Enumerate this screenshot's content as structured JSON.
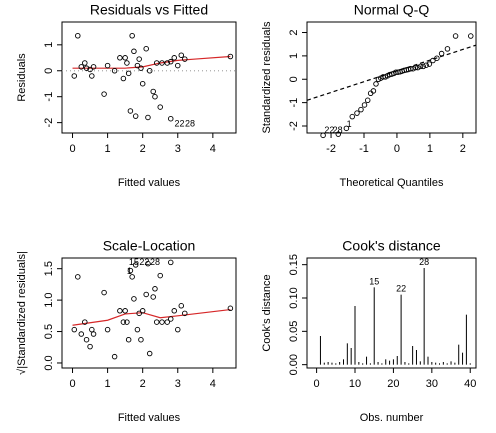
{
  "chart_data": [
    {
      "type": "scatter",
      "title": "Residuals vs Fitted",
      "xlabel": "Fitted values",
      "ylabel": "Residuals",
      "xlim": [
        -0.3,
        4.66
      ],
      "ylim": [
        -2.4,
        1.88
      ],
      "xticks": [
        0,
        1,
        2,
        3,
        4
      ],
      "yticks": [
        -2,
        -1,
        0,
        1
      ],
      "marker_color": "#000000",
      "x": [
        0.05,
        0.15,
        0.25,
        0.35,
        0.4,
        0.5,
        0.55,
        0.6,
        0.9,
        1.2,
        1.35,
        1.45,
        1.5,
        1.55,
        1.6,
        1.65,
        1.7,
        1.75,
        1.8,
        1.85,
        1.9,
        1.95,
        2.0,
        2.1,
        2.15,
        2.2,
        2.3,
        2.35,
        2.4,
        2.5,
        2.55,
        2.8,
        2.7,
        2.8,
        2.9,
        3.0,
        3.1,
        3.2,
        4.5,
        1.0
      ],
      "y": [
        -0.2,
        1.35,
        0.15,
        0.3,
        0.1,
        0.05,
        -0.2,
        0.15,
        -0.9,
        0.0,
        0.5,
        -0.3,
        0.5,
        0.3,
        -0.1,
        -1.55,
        1.35,
        0.75,
        -1.75,
        0.2,
        0.45,
        0.1,
        -0.5,
        0.85,
        -1.8,
        0.0,
        -0.8,
        -1.0,
        0.3,
        -1.4,
        0.3,
        -1.85,
        0.3,
        0.35,
        0.5,
        0.2,
        0.6,
        0.45,
        0.55,
        0.2
      ],
      "lines": [
        {
          "color": "#aaaaaa",
          "style": "dotted",
          "x": [
            -0.3,
            4.66
          ],
          "y": [
            0,
            0
          ]
        },
        {
          "color": "#d62728",
          "style": "solid",
          "x": [
            0,
            0.5,
            1,
            1.5,
            2,
            2.5,
            3,
            3.5,
            4.5
          ],
          "y": [
            0.1,
            0.1,
            0.1,
            0.1,
            0.15,
            0.3,
            0.4,
            0.45,
            0.55
          ]
        }
      ],
      "annotations": [
        {
          "text": "22",
          "x": 3.05,
          "y": -2.05
        },
        {
          "text": "28",
          "x": 3.35,
          "y": -2.05
        }
      ]
    },
    {
      "type": "scatter",
      "title": "Normal Q-Q",
      "xlabel": "Theoretical Quantiles",
      "ylabel": "Standardized residuals",
      "xlim": [
        -2.73,
        2.4
      ],
      "ylim": [
        -2.3,
        2.45
      ],
      "xticks": [
        -2,
        -1,
        0,
        1,
        2
      ],
      "yticks": [
        -2,
        -1,
        0,
        1,
        2
      ],
      "marker_color": "#000000",
      "x": [
        -2.241,
        -1.78,
        -1.534,
        -1.356,
        -1.213,
        -1.092,
        -0.984,
        -0.887,
        -0.798,
        -0.714,
        -0.636,
        -0.561,
        -0.489,
        -0.419,
        -0.352,
        -0.286,
        -0.221,
        -0.157,
        -0.094,
        -0.031,
        0.031,
        0.094,
        0.157,
        0.221,
        0.286,
        0.352,
        0.419,
        0.489,
        0.561,
        0.636,
        0.714,
        0.798,
        0.887,
        0.984,
        1.092,
        1.213,
        1.356,
        1.534,
        1.78,
        2.241
      ],
      "y": [
        -2.4,
        -2.35,
        -2.1,
        -1.6,
        -1.45,
        -1.3,
        -1.1,
        -0.9,
        -0.6,
        -0.5,
        -0.2,
        0.0,
        0.05,
        0.1,
        0.1,
        0.15,
        0.2,
        0.22,
        0.25,
        0.3,
        0.3,
        0.32,
        0.35,
        0.38,
        0.4,
        0.42,
        0.45,
        0.45,
        0.5,
        0.5,
        0.55,
        0.55,
        0.6,
        0.65,
        0.8,
        0.9,
        1.1,
        1.3,
        1.85,
        1.85
      ],
      "lines": [
        {
          "color": "#000000",
          "style": "dashed",
          "x": [
            -2.73,
            2.4
          ],
          "y": [
            -0.9,
            1.46
          ]
        }
      ],
      "annotations": [
        {
          "text": "22",
          "x": -2.05,
          "y": -2.2
        },
        {
          "text": "28",
          "x": -1.8,
          "y": -2.2
        },
        {
          "text": "1",
          "x": -1.45,
          "y": -1.95
        }
      ]
    },
    {
      "type": "scatter",
      "title": "Scale-Location",
      "xlabel": "Fitted values",
      "ylabel": "√|Standardized residuals|",
      "xlim": [
        -0.3,
        4.66
      ],
      "ylim": [
        -0.08,
        1.67
      ],
      "xticks": [
        0,
        1,
        2,
        3,
        4
      ],
      "yticks": [
        {
          "value": 0,
          "label": "0.0"
        },
        0.5,
        {
          "value": 1,
          "label": "1.0"
        },
        1.5
      ],
      "marker_color": "#000000",
      "x": [
        0.05,
        0.15,
        0.25,
        0.35,
        0.4,
        0.5,
        0.55,
        0.6,
        0.9,
        1.2,
        1.35,
        1.45,
        1.5,
        1.55,
        1.6,
        1.65,
        1.7,
        1.75,
        1.8,
        1.85,
        1.9,
        1.95,
        2.0,
        2.1,
        2.15,
        2.2,
        2.3,
        2.35,
        2.4,
        2.5,
        2.55,
        2.8,
        2.7,
        2.8,
        2.9,
        3.0,
        3.1,
        3.2,
        4.5,
        1.0
      ],
      "y": [
        0.53,
        1.37,
        0.46,
        0.65,
        0.37,
        0.26,
        0.53,
        0.46,
        1.12,
        0.1,
        0.83,
        0.65,
        0.83,
        0.65,
        0.37,
        1.47,
        1.37,
        1.02,
        1.56,
        0.53,
        0.79,
        0.37,
        0.83,
        1.09,
        1.58,
        0.15,
        1.05,
        1.18,
        0.65,
        1.39,
        0.65,
        1.6,
        0.65,
        0.7,
        0.83,
        0.53,
        0.91,
        0.79,
        0.87,
        0.53
      ],
      "lines": [
        {
          "color": "#d62728",
          "style": "solid",
          "x": [
            0,
            1,
            1.5,
            2,
            2.5,
            3,
            4.5
          ],
          "y": [
            0.6,
            0.68,
            0.78,
            0.8,
            0.72,
            0.75,
            0.85
          ]
        }
      ],
      "annotations": [
        {
          "text": "15",
          "x": 1.75,
          "y": 1.6
        },
        {
          "text": "22",
          "x": 2.05,
          "y": 1.6
        },
        {
          "text": "28",
          "x": 2.35,
          "y": 1.6
        },
        {
          "text": "1",
          "x": 1.62,
          "y": 1.45
        }
      ]
    },
    {
      "type": "bar",
      "title": "Cook's distance",
      "xlabel": "Obs. number",
      "ylabel": "Cook's distance",
      "xlim": [
        -2.5,
        41.5
      ],
      "ylim": [
        -0.005,
        0.16
      ],
      "xticks": [
        0,
        10,
        20,
        30,
        40
      ],
      "yticks": [
        {
          "value": 0,
          "label": "0.00"
        },
        {
          "value": 0.05,
          "label": "0.05"
        },
        {
          "value": 0.1,
          "label": "0.10"
        },
        {
          "value": 0.15,
          "label": "0.15"
        }
      ],
      "color": "#000000",
      "x": [
        1,
        2,
        3,
        4,
        5,
        6,
        7,
        8,
        9,
        10,
        11,
        12,
        13,
        14,
        15,
        16,
        17,
        18,
        19,
        20,
        21,
        22,
        23,
        24,
        25,
        26,
        27,
        28,
        29,
        30,
        31,
        32,
        33,
        34,
        35,
        36,
        37,
        38,
        39,
        40
      ],
      "values": [
        0.043,
        0.003,
        0.004,
        0.003,
        0.002,
        0.004,
        0.008,
        0.032,
        0.025,
        0.088,
        0.004,
        0.002,
        0.012,
        0.002,
        0.116,
        0.004,
        0.002,
        0.008,
        0.006,
        0.008,
        0.013,
        0.105,
        0.004,
        0.002,
        0.028,
        0.022,
        0.005,
        0.145,
        0.012,
        0.004,
        0.003,
        0.002,
        0.004,
        0.002,
        0.005,
        0.003,
        0.03,
        0.018,
        0.075,
        0.002
      ],
      "annotations": [
        {
          "text": "15",
          "x": 15,
          "y": 0.124
        },
        {
          "text": "22",
          "x": 22,
          "y": 0.113
        },
        {
          "text": "28",
          "x": 28,
          "y": 0.153
        }
      ]
    }
  ]
}
